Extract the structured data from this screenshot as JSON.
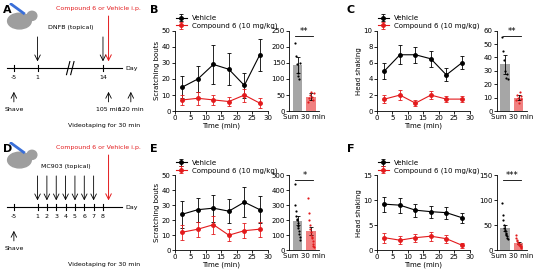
{
  "panel_labels": [
    "A",
    "B",
    "C",
    "D",
    "E",
    "F"
  ],
  "diagrams": [
    {
      "days": [
        "-5",
        "1",
        "14"
      ],
      "break": true,
      "day_label": "Day",
      "shave_day": "-5",
      "shave": "Shave",
      "treatment": "DNFB (topical)",
      "treatment_days": [
        "1",
        "14"
      ],
      "drug": "Compound 6 or Vehicle i.p.",
      "drug_day": "14",
      "times": [
        "105 min",
        "120 min"
      ],
      "video": "Videotaping for 30 min"
    },
    {
      "days": [
        "-5",
        "1",
        "2",
        "3",
        "4",
        "5",
        "6",
        "7",
        "8"
      ],
      "break": false,
      "day_label": "Day",
      "shave_day": "-5",
      "shave": "Shave",
      "treatment": "MC903 (topical)",
      "treatment_days": [
        "1",
        "2",
        "3",
        "4",
        "5",
        "6",
        "7"
      ],
      "drug": "Compound 6 or Vehicle i.p.",
      "drug_day": "8",
      "times": [],
      "video": "Videotaping for 30 min"
    }
  ],
  "chart_data": [
    {
      "type": "line",
      "x": [
        2.5,
        7.5,
        12.5,
        17.5,
        22.5,
        27.5
      ],
      "xlabel": "Time (min)",
      "ylabel": "Scratching bouts",
      "xlim": [
        0,
        30
      ],
      "xticks": [
        0,
        5,
        10,
        15,
        20,
        25,
        30
      ],
      "ylim": [
        0,
        50
      ],
      "yticks": [
        0,
        10,
        20,
        30,
        40,
        50
      ],
      "legend": "lower left",
      "series": [
        {
          "name": "Vehicle",
          "color": "#000000",
          "marker": "circle",
          "line_style": "solid",
          "values": [
            15,
            20,
            29,
            26,
            16,
            35
          ],
          "errors": [
            7,
            8,
            12,
            10,
            8,
            10
          ]
        },
        {
          "name": "Compound 6 (10 mg/kg)",
          "color": "#e31a1c",
          "marker": "circle",
          "line_style": "solid",
          "values": [
            7,
            8,
            7,
            6,
            10,
            5
          ],
          "errors": [
            3,
            4,
            3,
            3,
            4,
            3
          ]
        }
      ]
    },
    {
      "type": "bar",
      "categories": [
        null,
        null
      ],
      "xlabel": "Sum 30 min",
      "values": [
        143,
        45
      ],
      "errors": [
        25,
        10
      ],
      "colors": [
        "#a6a6a6",
        "#f08080"
      ],
      "ylim": [
        0,
        250
      ],
      "yticks": [
        0,
        50,
        100,
        150,
        200,
        250
      ],
      "annotations": [
        "**"
      ],
      "points": [
        {
          "color": "#000000",
          "values": [
            210,
            170,
            145,
            120,
            110,
            100,
            150
          ]
        },
        {
          "color": "#e31a1c",
          "values": [
            30,
            40,
            50,
            60,
            45,
            35,
            55
          ]
        }
      ]
    },
    {
      "type": "line",
      "x": [
        2.5,
        7.5,
        12.5,
        17.5,
        22.5,
        27.5
      ],
      "xlabel": "Time (min)",
      "ylabel": "Head shaking",
      "xlim": [
        0,
        30
      ],
      "xticks": [
        0,
        5,
        10,
        15,
        20,
        25,
        30
      ],
      "ylim": [
        0,
        10
      ],
      "yticks": [
        0,
        2,
        4,
        6,
        8,
        10
      ],
      "legend": "lower left",
      "series": [
        {
          "name": "Vehicle",
          "color": "#000000",
          "marker": "circle",
          "line_style": "solid",
          "values": [
            5,
            7,
            7,
            6.5,
            4.5,
            6
          ],
          "errors": [
            1,
            1.2,
            1,
            1,
            0.8,
            0.8
          ]
        },
        {
          "name": "Compound 6 (10 mg/kg)",
          "color": "#e31a1c",
          "marker": "circle",
          "line_style": "solid",
          "values": [
            1.5,
            2,
            1,
            2,
            1.5,
            1.5
          ],
          "errors": [
            0.5,
            0.6,
            0.4,
            0.5,
            0.4,
            0.4
          ]
        }
      ]
    },
    {
      "type": "bar",
      "categories": [
        null,
        null
      ],
      "xlabel": "Sum 30 min",
      "values": [
        35,
        10
      ],
      "errors": [
        7,
        2
      ],
      "colors": [
        "#a6a6a6",
        "#f08080"
      ],
      "ylim": [
        0,
        60
      ],
      "yticks": [
        0,
        10,
        20,
        30,
        40,
        50,
        60
      ],
      "annotations": [
        "**"
      ],
      "points": [
        {
          "color": "#000000",
          "values": [
            55,
            45,
            38,
            30,
            25,
            28,
            24
          ]
        },
        {
          "color": "#e31a1c",
          "values": [
            8,
            12,
            10,
            6,
            14,
            9,
            11
          ]
        }
      ]
    },
    {
      "type": "line",
      "x": [
        2.5,
        7.5,
        12.5,
        17.5,
        22.5,
        27.5
      ],
      "xlabel": "Time (min)",
      "ylabel": "Scratching bouts",
      "xlim": [
        0,
        30
      ],
      "xticks": [
        0,
        5,
        10,
        15,
        20,
        25,
        30
      ],
      "ylim": [
        0,
        50
      ],
      "yticks": [
        0,
        10,
        20,
        30,
        40,
        50
      ],
      "legend": "lower left",
      "series": [
        {
          "name": "Vehicle",
          "color": "#000000",
          "marker": "circle",
          "line_style": "solid",
          "values": [
            24,
            27,
            28,
            26,
            32,
            27
          ],
          "errors": [
            9,
            8,
            9,
            8,
            10,
            9
          ]
        },
        {
          "name": "Compound 6 (10 mg/kg)",
          "color": "#e31a1c",
          "marker": "circle",
          "line_style": "solid",
          "values": [
            12,
            14,
            17,
            10,
            13,
            14
          ],
          "errors": [
            5,
            5,
            6,
            4,
            5,
            5
          ]
        }
      ]
    },
    {
      "type": "bar",
      "categories": [
        null,
        null
      ],
      "xlabel": "Sum 30 min",
      "values": [
        195,
        127
      ],
      "errors": [
        30,
        25
      ],
      "colors": [
        "#a6a6a6",
        "#f08080"
      ],
      "ylim": [
        0,
        500
      ],
      "yticks": [
        0,
        100,
        200,
        300,
        400,
        500
      ],
      "annotations": [
        "*"
      ],
      "points": [
        {
          "color": "#000000",
          "values": [
            440,
            300,
            260,
            230,
            210,
            200,
            180,
            160,
            150,
            130,
            110,
            90,
            70
          ]
        },
        {
          "color": "#e31a1c",
          "values": [
            350,
            250,
            200,
            170,
            140,
            120,
            100,
            90,
            80,
            60,
            40,
            30,
            20
          ]
        }
      ]
    },
    {
      "type": "line",
      "x": [
        2.5,
        7.5,
        12.5,
        17.5,
        22.5,
        27.5
      ],
      "xlabel": "Time (min)",
      "ylabel": "Head shaking",
      "xlim": [
        0,
        30
      ],
      "xticks": [
        0,
        5,
        10,
        15,
        20,
        25,
        30
      ],
      "ylim": [
        0,
        15
      ],
      "yticks": [
        0,
        5,
        10,
        15
      ],
      "legend": "lower left",
      "series": [
        {
          "name": "Vehicle",
          "color": "#000000",
          "marker": "circle",
          "line_style": "solid",
          "values": [
            9.2,
            9,
            8,
            7.7,
            7.5,
            6.5
          ],
          "errors": [
            1.5,
            1.5,
            1.3,
            1.2,
            1.2,
            1
          ]
        },
        {
          "name": "Compound 6 (10 mg/kg)",
          "color": "#e31a1c",
          "marker": "circle",
          "line_style": "solid",
          "values": [
            2.5,
            2,
            2.5,
            2.8,
            2.3,
            1
          ],
          "errors": [
            1,
            0.8,
            0.8,
            0.9,
            0.8,
            0.5
          ]
        }
      ]
    },
    {
      "type": "bar",
      "categories": [
        null,
        null
      ],
      "xlabel": "Sum 30 min",
      "values": [
        44,
        14
      ],
      "errors": [
        6,
        2
      ],
      "colors": [
        "#a6a6a6",
        "#f08080"
      ],
      "ylim": [
        0,
        150
      ],
      "yticks": [
        0,
        50,
        100,
        150
      ],
      "annotations": [
        "***"
      ],
      "points": [
        {
          "color": "#000000",
          "values": [
            95,
            70,
            60,
            50,
            45,
            40,
            38,
            35,
            32,
            30,
            28,
            25,
            22
          ]
        },
        {
          "color": "#e31a1c",
          "values": [
            30,
            25,
            20,
            18,
            15,
            13,
            12,
            10,
            10,
            8,
            8,
            6,
            5
          ]
        }
      ]
    }
  ]
}
